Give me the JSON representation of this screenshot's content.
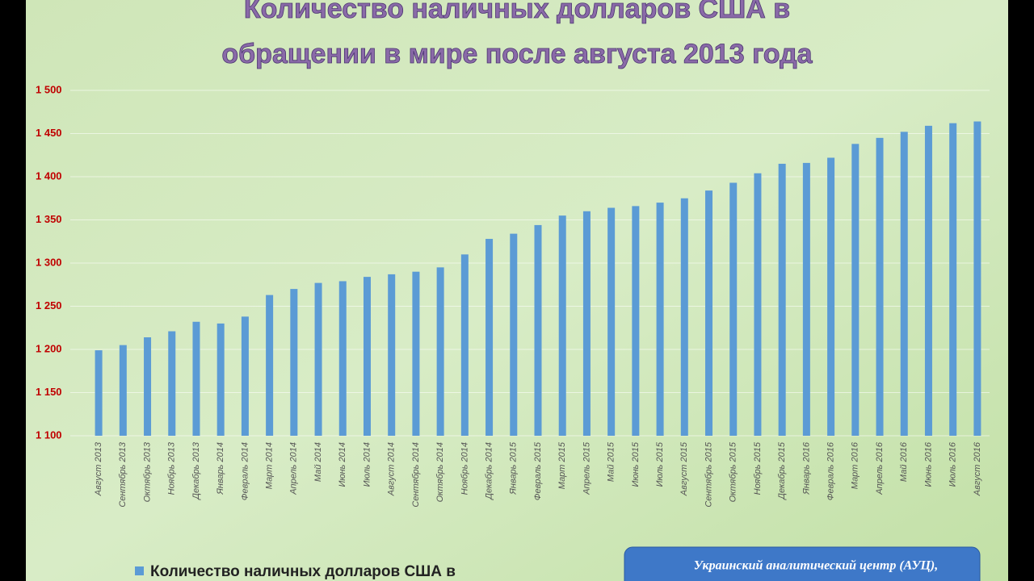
{
  "chart_data": {
    "type": "bar",
    "title": [
      "Количество наличных долларов США в",
      "обращении в мире  после августа 2013 года"
    ],
    "categories": [
      "Август 2013",
      "Сентябрь 2013",
      "Октябрь 2013",
      "Ноябрь 2013",
      "Декабрь 2013",
      "Январь 2014",
      "Февраль 2014",
      "Март 2014",
      "Апрель 2014",
      "Май 2014",
      "Июнь 2014",
      "Июль 2014",
      "Август 2014",
      "Сентябрь 2014",
      "Октябрь 2014",
      "Ноябрь 2014",
      "Декабрь 2014",
      "Январь 2015",
      "Февраль 2015",
      "Март 2015",
      "Апрель 2015",
      "Май 2015",
      "Июнь 2015",
      "Июль 2015",
      "Август 2015",
      "Сентябрь 2015",
      "Октябрь 2015",
      "Ноябрь 2015",
      "Декабрь 2015",
      "Январь 2016",
      "Февраль 2016",
      "Март 2016",
      "Апрель 2016",
      "Май 2016",
      "Июнь 2016",
      "Июль 2016",
      "Август 2016"
    ],
    "series": [
      {
        "name": "Количество наличных долларов США в",
        "color": "#5b9bd5",
        "values": [
          1199,
          1205,
          1214,
          1221,
          1232,
          1230,
          1238,
          1263,
          1270,
          1277,
          1279,
          1284,
          1287,
          1290,
          1295,
          1310,
          1328,
          1334,
          1344,
          1355,
          1360,
          1364,
          1366,
          1370,
          1375,
          1384,
          1393,
          1404,
          1415,
          1416,
          1422,
          1438,
          1445,
          1452,
          1459,
          1462,
          1464
        ]
      }
    ],
    "ylim": [
      1100,
      1500
    ],
    "yticks": [
      {
        "value": 1100,
        "label": "1 100"
      },
      {
        "value": 1150,
        "label": "1 150"
      },
      {
        "value": 1200,
        "label": "1 200"
      },
      {
        "value": 1250,
        "label": "1 250"
      },
      {
        "value": 1300,
        "label": "1 300"
      },
      {
        "value": 1350,
        "label": "1 350"
      },
      {
        "value": 1400,
        "label": "1 400"
      },
      {
        "value": 1450,
        "label": "1 450"
      },
      {
        "value": 1500,
        "label": "1 500"
      }
    ],
    "grid": true,
    "source": "Украинский аналитический центр (АУЦ),"
  }
}
